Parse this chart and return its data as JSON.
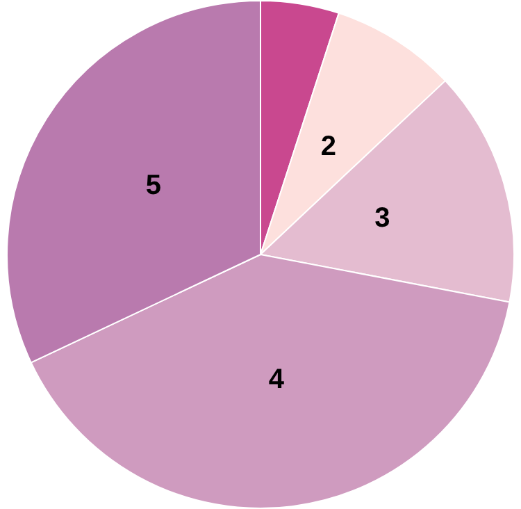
{
  "chart_data": {
    "type": "pie",
    "categories": [
      null,
      "2",
      "3",
      "4",
      "5"
    ],
    "values": [
      5,
      8,
      15,
      40,
      32
    ],
    "colors": [
      "#c9488f",
      "#fde0dd",
      "#e4bcd0",
      "#cf9bbf",
      "#b97aae"
    ],
    "legend": false
  }
}
